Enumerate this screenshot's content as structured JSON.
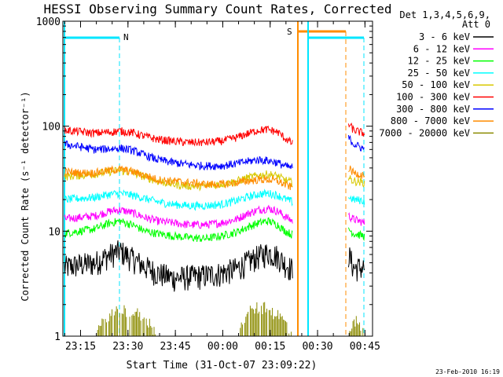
{
  "chart_data": {
    "type": "line",
    "title": "HESSI Observing Summary Count Rates, Corrected",
    "xlabel": "Start Time (31-Oct-07 23:09:22)",
    "ylabel": "Corrected Count Rate (s⁻¹ detector⁻¹)",
    "x_unit": "minutes after 23:09:22",
    "y_scale": "log",
    "ylim": [
      1,
      1000
    ],
    "xlim": [
      0,
      98
    ],
    "grid": false,
    "y_ticks": [
      {
        "value": 1,
        "label": "1"
      },
      {
        "value": 10,
        "label": "10"
      },
      {
        "value": 100,
        "label": "100"
      },
      {
        "value": 1000,
        "label": "1000"
      }
    ],
    "x_ticks": [
      {
        "value": 5.6,
        "label": "23:15"
      },
      {
        "value": 20.6,
        "label": "23:30"
      },
      {
        "value": 35.6,
        "label": "23:45"
      },
      {
        "value": 50.6,
        "label": "00:00"
      },
      {
        "value": 65.6,
        "label": "00:15"
      },
      {
        "value": 80.6,
        "label": "00:30"
      },
      {
        "value": 95.6,
        "label": "00:45"
      }
    ],
    "legend": {
      "placement": "right",
      "header": [
        "Det 1,3,4,5,6,9,",
        "Att 0"
      ]
    },
    "segments": [
      [
        0.5,
        72.7
      ],
      [
        90.4,
        95.5
      ]
    ],
    "series": [
      {
        "name": "3 - 6 keV",
        "color": "#000000",
        "x": [
          0,
          5,
          10,
          15,
          18,
          22,
          26,
          30,
          35,
          40,
          45,
          50,
          55,
          58,
          62,
          65,
          68,
          70,
          72.7,
          90.4,
          92,
          95.5
        ],
        "y": [
          4.5,
          4.8,
          5,
          6,
          6.5,
          5.5,
          4.6,
          4,
          3.6,
          3.7,
          3.8,
          4,
          4.4,
          5,
          5.8,
          6.3,
          5.8,
          5,
          4.3,
          6,
          4.5,
          4.5
        ]
      },
      {
        "name": "6 - 12 keV",
        "color": "#ff00ff",
        "x": [
          0,
          5,
          10,
          15,
          18,
          22,
          26,
          30,
          35,
          40,
          45,
          50,
          55,
          58,
          62,
          65,
          68,
          70,
          72.7,
          90.4,
          92,
          95.5
        ],
        "y": [
          13,
          13.5,
          14,
          15.5,
          16,
          15,
          13.5,
          12.5,
          12,
          11.5,
          11.5,
          12,
          13,
          14.5,
          16,
          16.5,
          15.5,
          14,
          12.5,
          14,
          13,
          12
        ]
      },
      {
        "name": "12 - 25 keV",
        "color": "#00ff00",
        "x": [
          0,
          5,
          10,
          15,
          18,
          22,
          26,
          30,
          35,
          40,
          45,
          50,
          55,
          58,
          62,
          65,
          68,
          70,
          72.7,
          90.4,
          92,
          95.5
        ],
        "y": [
          9.5,
          10,
          10.5,
          12,
          12.5,
          11.5,
          10,
          9.5,
          9,
          8.7,
          8.5,
          9,
          9.8,
          10.8,
          12,
          12.5,
          11.5,
          10.2,
          9.2,
          10.5,
          9.5,
          9
        ]
      },
      {
        "name": "25 - 50 keV",
        "color": "#00ffff",
        "x": [
          0,
          5,
          10,
          15,
          18,
          22,
          26,
          30,
          35,
          40,
          45,
          50,
          55,
          58,
          62,
          65,
          68,
          70,
          72.7,
          90.4,
          92,
          95.5
        ],
        "y": [
          20,
          20.5,
          21,
          22.5,
          23,
          22,
          20.5,
          19,
          18,
          17.5,
          17.5,
          18,
          19.5,
          21,
          22.5,
          23,
          22,
          20.5,
          19,
          21,
          20,
          19.5
        ]
      },
      {
        "name": "50 - 100 keV",
        "color": "#d8c800",
        "x": [
          0,
          5,
          10,
          15,
          18,
          22,
          26,
          30,
          35,
          40,
          45,
          50,
          55,
          58,
          62,
          65,
          68,
          70,
          72.7,
          90.4,
          92,
          95.5
        ],
        "y": [
          33,
          34,
          35,
          37,
          38,
          36,
          33,
          30,
          28,
          27,
          27,
          28,
          30,
          32,
          34,
          35,
          33.5,
          31,
          29,
          32,
          30,
          29
        ]
      },
      {
        "name": "100 - 300 keV",
        "color": "#ff0000",
        "x": [
          0,
          5,
          10,
          15,
          18,
          22,
          26,
          30,
          35,
          40,
          45,
          50,
          55,
          58,
          62,
          65,
          68,
          70,
          72.7,
          90.4,
          92,
          95.5
        ],
        "y": [
          92,
          89,
          86,
          88,
          90,
          87,
          80,
          75,
          72,
          70,
          70,
          72,
          78,
          84,
          92,
          93,
          88,
          78,
          68,
          105,
          92,
          85
        ]
      },
      {
        "name": "300 - 800 keV",
        "color": "#0000ff",
        "x": [
          0,
          5,
          10,
          15,
          18,
          22,
          26,
          30,
          35,
          40,
          45,
          50,
          55,
          58,
          62,
          65,
          68,
          70,
          72.7,
          90.4,
          92,
          95.5
        ],
        "y": [
          68,
          64,
          60,
          61,
          62,
          59,
          53,
          48,
          45,
          43,
          42,
          42,
          44,
          46,
          48,
          47,
          45,
          42,
          40,
          78,
          68,
          60
        ]
      },
      {
        "name": "800 - 7000 keV",
        "color": "#ff8c00",
        "x": [
          0,
          5,
          10,
          15,
          18,
          22,
          26,
          30,
          35,
          40,
          45,
          50,
          55,
          58,
          62,
          65,
          68,
          70,
          72.7,
          90.4,
          92,
          95.5
        ],
        "y": [
          37,
          36,
          36,
          38,
          39,
          37,
          34,
          31,
          30,
          29,
          28,
          28,
          29,
          30,
          31,
          31,
          30,
          28,
          26,
          40,
          36,
          34
        ]
      },
      {
        "name": "7000 - 20000 keV",
        "color": "#8b8b00",
        "x": [
          0,
          5,
          10,
          15,
          18,
          22,
          26,
          30,
          35,
          40,
          45,
          50,
          55,
          58,
          62,
          65,
          68,
          70,
          72.7,
          90.4,
          92,
          95.5
        ],
        "y": [
          1,
          1,
          1,
          1.6,
          1.8,
          1.7,
          1.5,
          1,
          1,
          1,
          1,
          1,
          1,
          1.6,
          1.9,
          1.8,
          1.6,
          1.4,
          1,
          1,
          1.5,
          1
        ]
      }
    ],
    "annotations": [
      {
        "text": "N",
        "color": "#00e6ff"
      },
      {
        "text": "S",
        "color": "#ff8c00"
      }
    ],
    "footer_date": "23-Feb-2010 16:19"
  }
}
